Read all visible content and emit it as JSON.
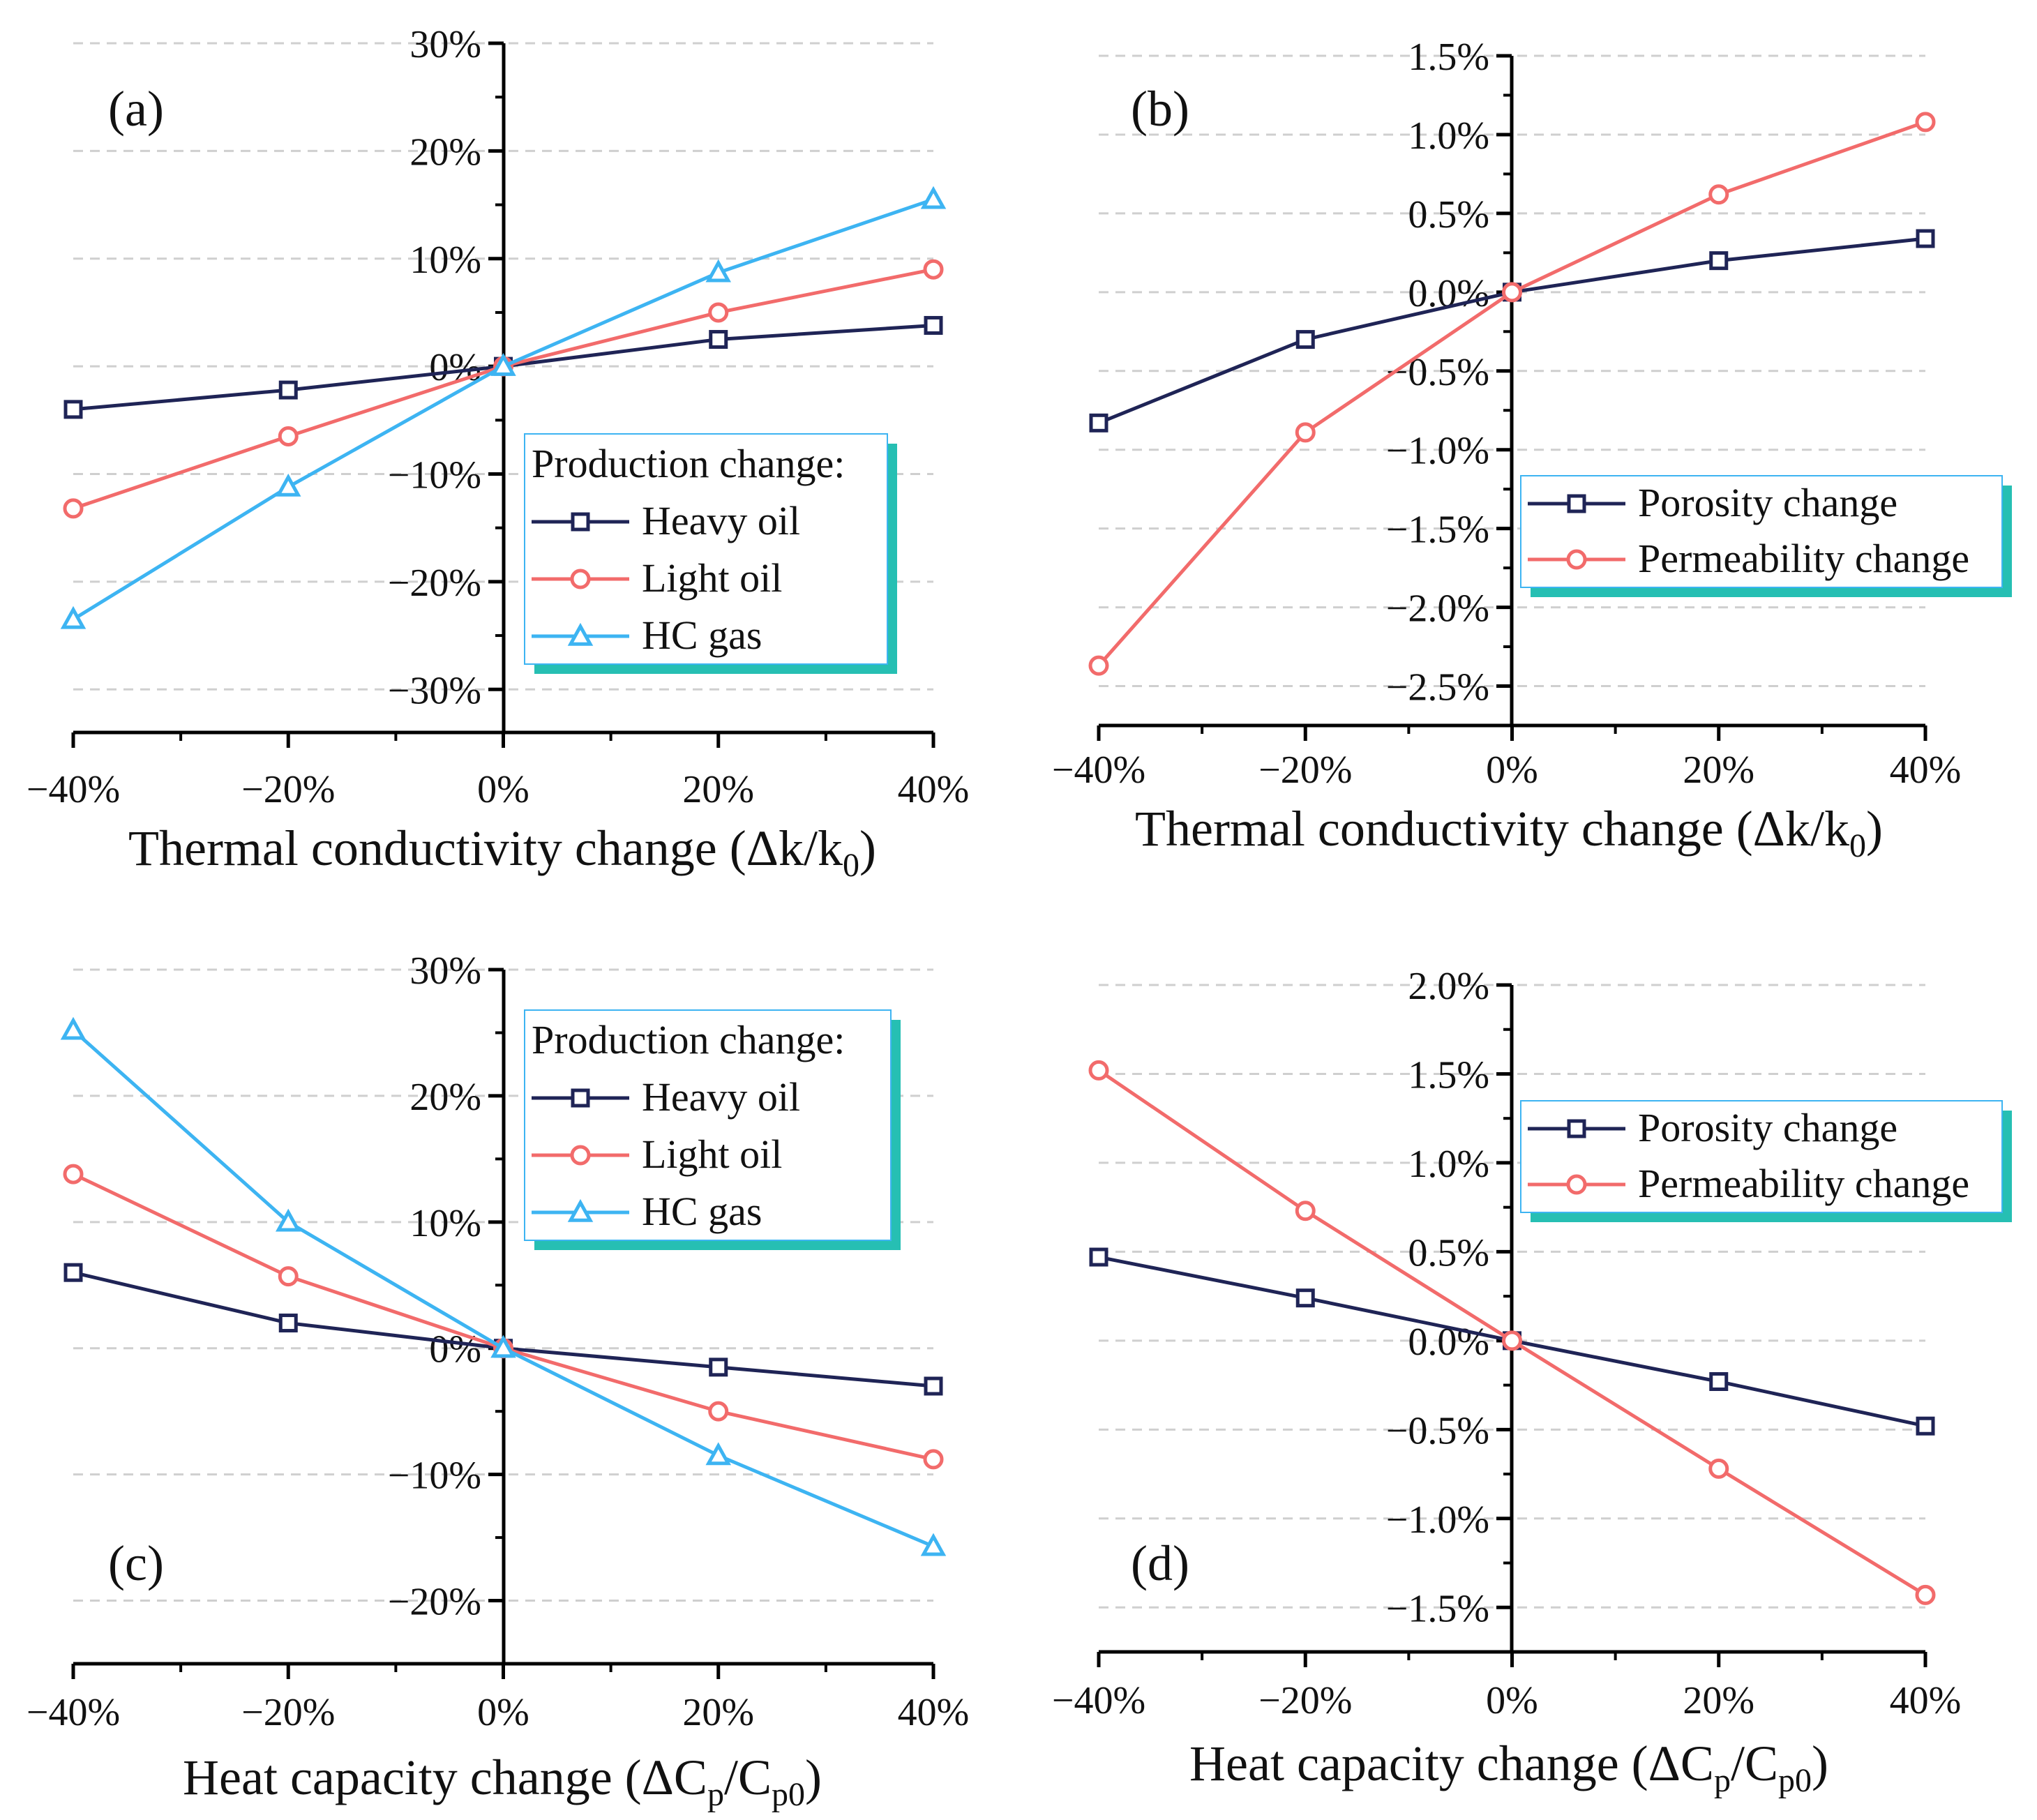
{
  "chart_data": [
    {
      "type": "line",
      "panel_label": "(a)",
      "x": [
        -40,
        -20,
        0,
        20,
        40
      ],
      "x_tick_labels": [
        "−40%",
        "−20%",
        "0%",
        "20%",
        "40%"
      ],
      "y_tick_values": [
        -30,
        -20,
        -10,
        0,
        10,
        20,
        30
      ],
      "y_tick_labels": [
        "−30%",
        "−20%",
        "−10%",
        "0%",
        "10%",
        "20%",
        "30%"
      ],
      "xlim": [
        -40,
        40
      ],
      "ylim": [
        -34,
        30
      ],
      "xlabel": "Thermal conductivity change (Δk/k",
      "xlabel_sub": "0",
      "xlabel_end": ")",
      "legend_title": "Production change:",
      "legend_position": "lower-right",
      "grid": "dashed horizontal",
      "series": [
        {
          "name": "Heavy oil",
          "marker": "square",
          "color": "#1f2456",
          "values": [
            -4,
            -2.2,
            0,
            2.5,
            3.8
          ]
        },
        {
          "name": "Light oil",
          "marker": "circle",
          "color": "#f26b6b",
          "values": [
            -13.2,
            -6.5,
            0,
            5,
            9
          ]
        },
        {
          "name": "HC gas",
          "marker": "triangle",
          "color": "#3db4f2",
          "values": [
            -23.5,
            -11.2,
            0,
            8.7,
            15.5
          ]
        }
      ]
    },
    {
      "type": "line",
      "panel_label": "(b)",
      "x": [
        -40,
        -20,
        0,
        20,
        40
      ],
      "x_tick_labels": [
        "−40%",
        "−20%",
        "0%",
        "20%",
        "40%"
      ],
      "y_tick_values": [
        -2.5,
        -2.0,
        -1.5,
        -1.0,
        -0.5,
        0,
        0.5,
        1.0,
        1.5
      ],
      "y_tick_labels": [
        "−2.5%",
        "−2.0%",
        "−1.5%",
        "−1.0%",
        "−0.5%",
        "0.0%",
        "0.5%",
        "1.0%",
        "1.5%"
      ],
      "xlim": [
        -40,
        40
      ],
      "ylim": [
        -2.75,
        1.5
      ],
      "xlabel": "Thermal conductivity change (Δk/k",
      "xlabel_sub": "0",
      "xlabel_end": ")",
      "legend_title": "",
      "legend_position": "middle-right",
      "grid": "dashed horizontal",
      "series": [
        {
          "name": "Porosity change",
          "marker": "square",
          "color": "#1f2456",
          "values": [
            -0.83,
            -0.3,
            0,
            0.2,
            0.34
          ]
        },
        {
          "name": "Permeability change",
          "marker": "circle",
          "color": "#f26b6b",
          "values": [
            -2.37,
            -0.89,
            0,
            0.62,
            1.08
          ]
        }
      ]
    },
    {
      "type": "line",
      "panel_label": "(c)",
      "x": [
        -40,
        -20,
        0,
        20,
        40
      ],
      "x_tick_labels": [
        "−40%",
        "−20%",
        "0%",
        "20%",
        "40%"
      ],
      "y_tick_values": [
        -20,
        -10,
        0,
        10,
        20,
        30
      ],
      "y_tick_labels": [
        "−20%",
        "−10%",
        "0%",
        "10%",
        "20%",
        "30%"
      ],
      "xlim": [
        -40,
        40
      ],
      "ylim": [
        -25,
        30
      ],
      "xlabel": "Heat capacity change (ΔC",
      "xlabel_sub": "p",
      "xlabel_mid": "/C",
      "xlabel_sub2": "p0",
      "xlabel_end": ")",
      "legend_title": "Production change:",
      "legend_position": "top-right",
      "grid": "dashed horizontal",
      "series": [
        {
          "name": "Heavy oil",
          "marker": "square",
          "color": "#1f2456",
          "values": [
            6,
            2,
            0,
            -1.5,
            -3
          ]
        },
        {
          "name": "Light oil",
          "marker": "circle",
          "color": "#f26b6b",
          "values": [
            13.8,
            5.7,
            0,
            -5,
            -8.8
          ]
        },
        {
          "name": "HC gas",
          "marker": "triangle",
          "color": "#3db4f2",
          "values": [
            25.2,
            10,
            0,
            -8.5,
            -15.7
          ]
        }
      ]
    },
    {
      "type": "line",
      "panel_label": "(d)",
      "x": [
        -40,
        -20,
        0,
        20,
        40
      ],
      "x_tick_labels": [
        "−40%",
        "−20%",
        "0%",
        "20%",
        "40%"
      ],
      "y_tick_values": [
        -1.5,
        -1.0,
        -0.5,
        0,
        0.5,
        1.0,
        1.5,
        2.0
      ],
      "y_tick_labels": [
        "−1.5%",
        "−1.0%",
        "−0.5%",
        "0.0%",
        "0.5%",
        "1.0%",
        "1.5%",
        "2.0%"
      ],
      "xlim": [
        -40,
        40
      ],
      "ylim": [
        -1.75,
        2.0
      ],
      "xlabel": "Heat capacity change (ΔC",
      "xlabel_sub": "p",
      "xlabel_mid": "/C",
      "xlabel_sub2": "p0",
      "xlabel_end": ")",
      "legend_title": "",
      "legend_position": "top-right",
      "grid": "dashed horizontal",
      "series": [
        {
          "name": "Porosity change",
          "marker": "square",
          "color": "#1f2456",
          "values": [
            0.47,
            0.24,
            0,
            -0.23,
            -0.48
          ]
        },
        {
          "name": "Permeability change",
          "marker": "circle",
          "color": "#f26b6b",
          "values": [
            1.52,
            0.73,
            0,
            -0.72,
            -1.43
          ]
        }
      ]
    }
  ]
}
